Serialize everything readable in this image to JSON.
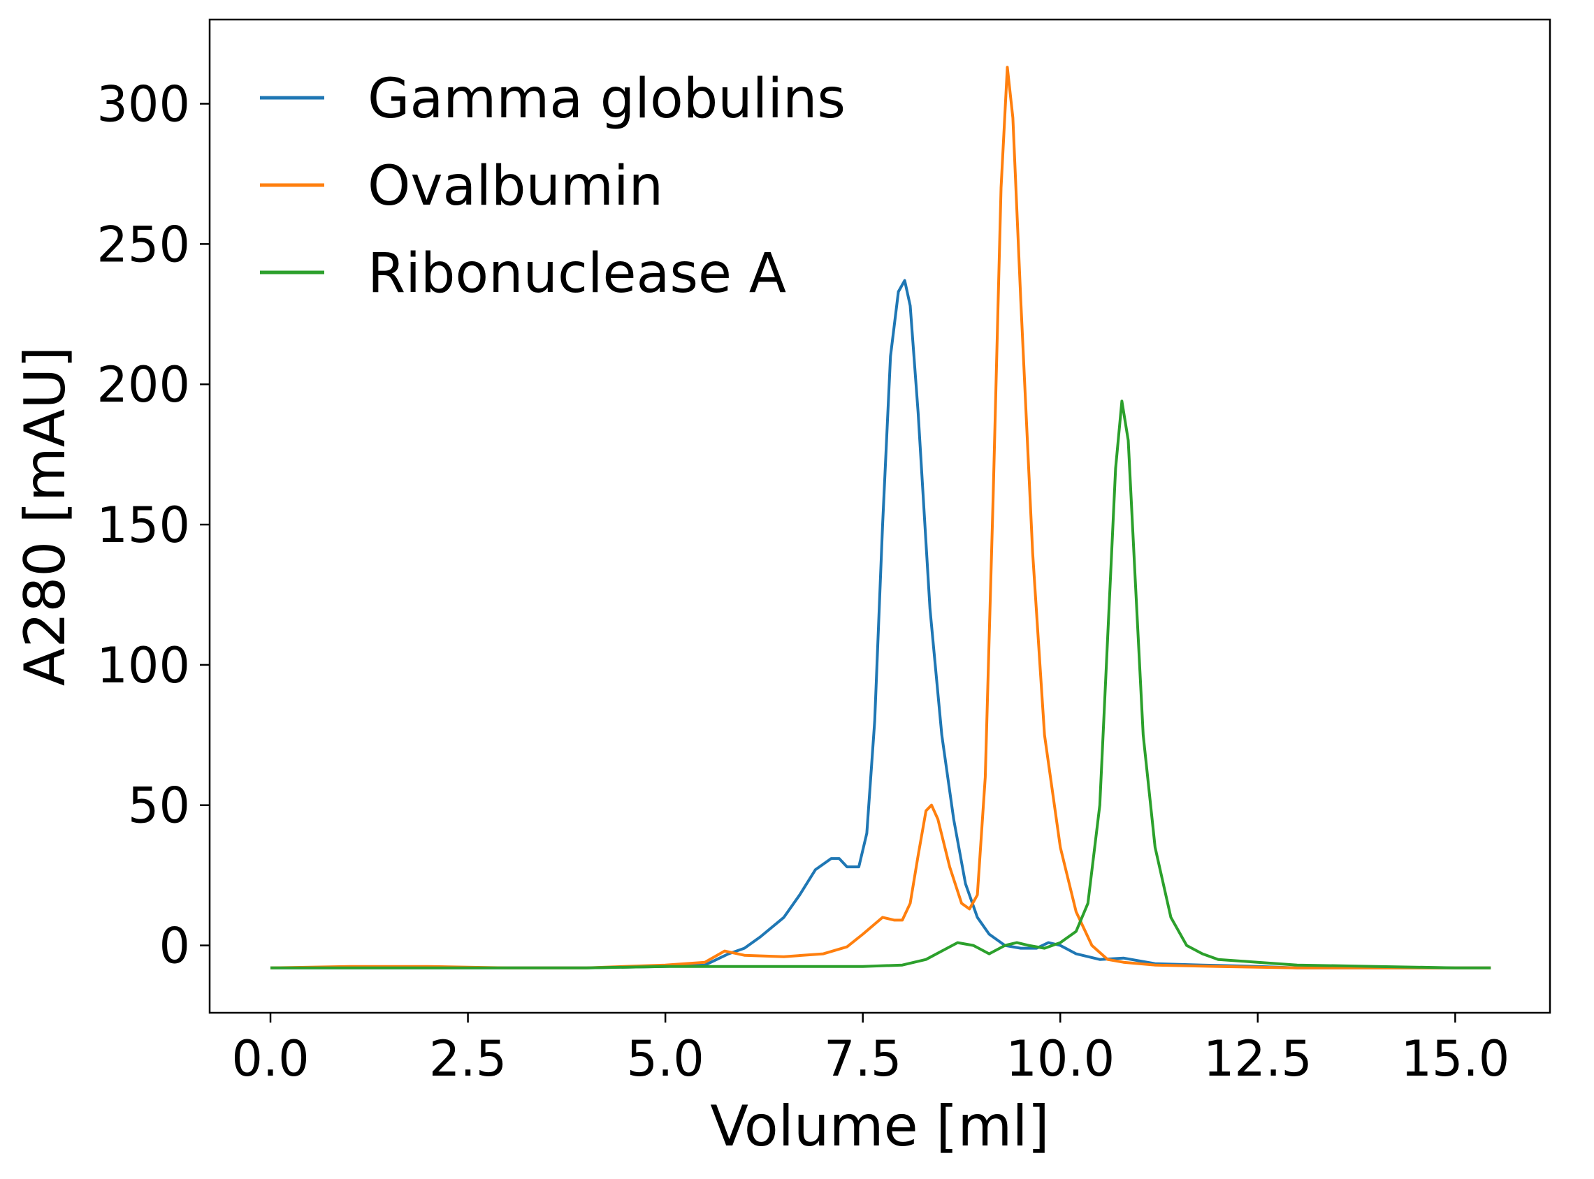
{
  "chart_data": {
    "type": "line",
    "title": "",
    "xlabel": "Volume [ml]",
    "ylabel": "A280 [mAU]",
    "xlim": [
      -0.77,
      16.2
    ],
    "ylim": [
      -24,
      330
    ],
    "x_ticks": [
      "0.0",
      "2.5",
      "5.0",
      "7.5",
      "10.0",
      "12.5",
      "15.0"
    ],
    "y_ticks": [
      "0",
      "50",
      "100",
      "150",
      "200",
      "250",
      "300"
    ],
    "grid": false,
    "legend_position": "top-left",
    "series": [
      {
        "name": "Gamma globulins",
        "color": "#1f77b4",
        "points": [
          [
            0,
            -8
          ],
          [
            1,
            -8
          ],
          [
            2,
            -8
          ],
          [
            3,
            -8
          ],
          [
            4,
            -8
          ],
          [
            5,
            -7.5
          ],
          [
            5.5,
            -7
          ],
          [
            5.8,
            -3
          ],
          [
            6.0,
            -1
          ],
          [
            6.2,
            3
          ],
          [
            6.5,
            10
          ],
          [
            6.7,
            18
          ],
          [
            6.9,
            27
          ],
          [
            7.1,
            31
          ],
          [
            7.2,
            31
          ],
          [
            7.3,
            28
          ],
          [
            7.45,
            28
          ],
          [
            7.55,
            40
          ],
          [
            7.65,
            80
          ],
          [
            7.75,
            150
          ],
          [
            7.85,
            210
          ],
          [
            7.95,
            233
          ],
          [
            8.03,
            237
          ],
          [
            8.1,
            228
          ],
          [
            8.2,
            190
          ],
          [
            8.35,
            120
          ],
          [
            8.5,
            75
          ],
          [
            8.65,
            45
          ],
          [
            8.8,
            22
          ],
          [
            8.95,
            10
          ],
          [
            9.1,
            4
          ],
          [
            9.3,
            0
          ],
          [
            9.5,
            -1
          ],
          [
            9.7,
            -1
          ],
          [
            9.85,
            1
          ],
          [
            10.0,
            0
          ],
          [
            10.2,
            -3
          ],
          [
            10.5,
            -5
          ],
          [
            10.8,
            -4.5
          ],
          [
            11.2,
            -6.5
          ],
          [
            11.8,
            -7
          ],
          [
            12.5,
            -7.5
          ],
          [
            13,
            -8
          ],
          [
            14,
            -8
          ],
          [
            15,
            -8
          ],
          [
            15.45,
            -8
          ]
        ]
      },
      {
        "name": "Ovalbumin",
        "color": "#ff7f0e",
        "points": [
          [
            0,
            -8
          ],
          [
            1,
            -7.5
          ],
          [
            2,
            -7.5
          ],
          [
            3,
            -8
          ],
          [
            4,
            -8
          ],
          [
            5,
            -7
          ],
          [
            5.5,
            -6
          ],
          [
            5.75,
            -2
          ],
          [
            6.0,
            -3.5
          ],
          [
            6.5,
            -4
          ],
          [
            7.0,
            -3
          ],
          [
            7.3,
            -0.5
          ],
          [
            7.5,
            4
          ],
          [
            7.75,
            10
          ],
          [
            7.9,
            9
          ],
          [
            8.0,
            9
          ],
          [
            8.1,
            15
          ],
          [
            8.2,
            32
          ],
          [
            8.3,
            48
          ],
          [
            8.37,
            50
          ],
          [
            8.45,
            45
          ],
          [
            8.6,
            28
          ],
          [
            8.75,
            15
          ],
          [
            8.85,
            13
          ],
          [
            8.95,
            18
          ],
          [
            9.05,
            60
          ],
          [
            9.15,
            160
          ],
          [
            9.25,
            270
          ],
          [
            9.33,
            313
          ],
          [
            9.4,
            295
          ],
          [
            9.5,
            230
          ],
          [
            9.65,
            140
          ],
          [
            9.8,
            75
          ],
          [
            10.0,
            35
          ],
          [
            10.2,
            12
          ],
          [
            10.4,
            0
          ],
          [
            10.6,
            -5
          ],
          [
            10.8,
            -6
          ],
          [
            11.2,
            -7
          ],
          [
            12,
            -7.5
          ],
          [
            13,
            -8
          ],
          [
            14,
            -8
          ],
          [
            15,
            -8
          ],
          [
            15.45,
            -8
          ]
        ]
      },
      {
        "name": "Ribonuclease A",
        "color": "#2ca02c",
        "points": [
          [
            0,
            -8
          ],
          [
            1,
            -8
          ],
          [
            2,
            -8
          ],
          [
            3,
            -8
          ],
          [
            4,
            -8
          ],
          [
            5,
            -7.5
          ],
          [
            6,
            -7.5
          ],
          [
            7,
            -7.5
          ],
          [
            7.5,
            -7.5
          ],
          [
            8.0,
            -7
          ],
          [
            8.3,
            -5
          ],
          [
            8.5,
            -2
          ],
          [
            8.7,
            1
          ],
          [
            8.9,
            0
          ],
          [
            9.1,
            -3
          ],
          [
            9.3,
            0
          ],
          [
            9.45,
            1
          ],
          [
            9.6,
            0
          ],
          [
            9.8,
            -1
          ],
          [
            10.0,
            1
          ],
          [
            10.2,
            5
          ],
          [
            10.35,
            15
          ],
          [
            10.5,
            50
          ],
          [
            10.6,
            110
          ],
          [
            10.7,
            170
          ],
          [
            10.78,
            194
          ],
          [
            10.86,
            180
          ],
          [
            10.95,
            130
          ],
          [
            11.05,
            75
          ],
          [
            11.2,
            35
          ],
          [
            11.4,
            10
          ],
          [
            11.6,
            0
          ],
          [
            11.8,
            -3
          ],
          [
            12.0,
            -5
          ],
          [
            12.5,
            -6
          ],
          [
            13,
            -7
          ],
          [
            14,
            -7.5
          ],
          [
            15,
            -8
          ],
          [
            15.45,
            -8
          ]
        ]
      }
    ]
  }
}
